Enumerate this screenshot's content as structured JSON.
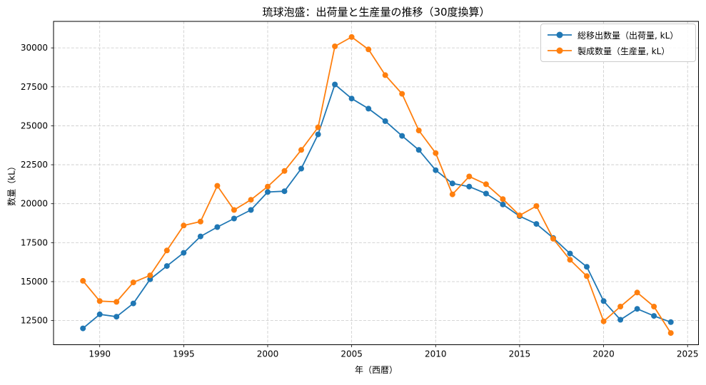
{
  "chart_data": {
    "type": "line",
    "title": "琉球泡盛：出荷量と生産量の推移（30度換算）",
    "xlabel": "年（西暦）",
    "ylabel": "数量（kL）",
    "xlim": [
      1987.25,
      2025.65
    ],
    "ylim": [
      10950,
      31700
    ],
    "xticks": [
      1990,
      1995,
      2000,
      2005,
      2010,
      2015,
      2020,
      2025
    ],
    "yticks": [
      12500,
      15000,
      17500,
      20000,
      22500,
      25000,
      27500,
      30000
    ],
    "grid": true,
    "grid_style": "dashed",
    "legend_position": "upper right",
    "x": [
      1989,
      1990,
      1991,
      1992,
      1993,
      1994,
      1995,
      1996,
      1997,
      1998,
      1999,
      2000,
      2001,
      2002,
      2003,
      2004,
      2005,
      2006,
      2007,
      2008,
      2009,
      2010,
      2011,
      2012,
      2013,
      2014,
      2015,
      2016,
      2017,
      2018,
      2019,
      2020,
      2021,
      2022,
      2023,
      2024
    ],
    "series": [
      {
        "name": "総移出数量（出荷量, kL）",
        "color": "#1f77b4",
        "values": [
          12000,
          12900,
          12750,
          13600,
          15150,
          16000,
          16850,
          17900,
          18500,
          19050,
          19600,
          20750,
          20800,
          22250,
          24450,
          27650,
          26750,
          26100,
          25300,
          24350,
          23450,
          22150,
          21300,
          21100,
          20650,
          19950,
          19200,
          18700,
          17800,
          16800,
          15950,
          13750,
          12550,
          13250,
          12800,
          12400
        ]
      },
      {
        "name": "製成数量（生産量, kL）",
        "color": "#ff7f0e",
        "values": [
          15050,
          13750,
          13700,
          14950,
          15400,
          17000,
          18600,
          18850,
          21150,
          19600,
          20250,
          21100,
          22100,
          23450,
          24900,
          30100,
          30700,
          29900,
          28250,
          27050,
          24700,
          23250,
          20600,
          21750,
          21250,
          20300,
          19250,
          19850,
          17750,
          16400,
          15350,
          12450,
          13400,
          14300,
          13400,
          11700
        ]
      }
    ]
  },
  "colors": {
    "grid": "#c9c9c9",
    "spine": "#000000",
    "background": "#ffffff",
    "legend_border": "#cccccc"
  }
}
